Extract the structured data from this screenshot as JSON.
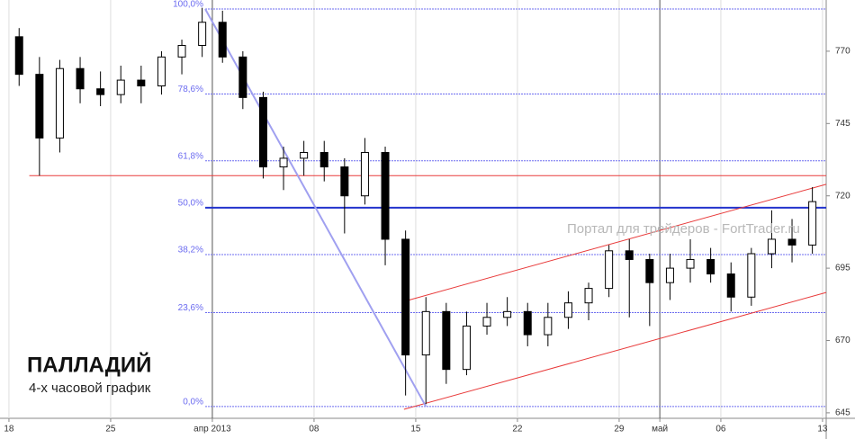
{
  "chart_data": {
    "type": "candlestick",
    "title": "ПАЛЛАДИЙ",
    "subtitle": "4-х часовой график",
    "watermark": "Портал для трейдеров - FortTrader.ru",
    "xlim": [
      -0.44,
      40.18
    ],
    "ylim": [
      643.1,
      787.7
    ],
    "xticks": [
      {
        "value": 0,
        "label": "18"
      },
      {
        "value": 5,
        "label": "25"
      },
      {
        "value": 10,
        "label": "апр 2013"
      },
      {
        "value": 15,
        "label": "08"
      },
      {
        "value": 20,
        "label": "15"
      },
      {
        "value": 25,
        "label": "22"
      },
      {
        "value": 30,
        "label": "29"
      },
      {
        "value": 32,
        "label": "май"
      },
      {
        "value": 35,
        "label": "06"
      },
      {
        "value": 40,
        "label": "13"
      }
    ],
    "yticks": [
      645,
      670,
      695,
      720,
      745,
      770
    ],
    "x": [
      0.5,
      1.5,
      2.5,
      3.5,
      4.5,
      5.5,
      6.5,
      7.5,
      8.5,
      9.5,
      10.5,
      11.5,
      12.5,
      13.5,
      14.5,
      15.5,
      16.5,
      17.5,
      18.5,
      19.5,
      20.5,
      21.5,
      22.5,
      23.5,
      24.5,
      25.5,
      26.5,
      27.5,
      28.5,
      29.5,
      30.5,
      31.5,
      32.5,
      33.5,
      34.5,
      35.5,
      36.5,
      37.5,
      38.5,
      39.5
    ],
    "open": [
      775,
      762,
      740,
      764,
      757,
      755,
      760,
      758,
      768,
      772,
      780,
      768,
      754,
      730,
      733,
      735,
      730,
      720,
      735,
      705,
      665,
      680,
      660,
      675,
      678,
      680,
      672,
      678,
      683,
      688,
      701,
      698,
      690,
      695,
      698,
      693,
      685,
      700,
      705,
      703
    ],
    "high": [
      778,
      768,
      767,
      768,
      763,
      765,
      765,
      770,
      774,
      785,
      784,
      770,
      756,
      737,
      739,
      739,
      733,
      740,
      737,
      708,
      685,
      683,
      680,
      683,
      685,
      683,
      683,
      687,
      690,
      703,
      705,
      700,
      700,
      705,
      702,
      697,
      702,
      715,
      712,
      723
    ],
    "low": [
      758,
      727,
      735,
      752,
      751,
      752,
      752,
      755,
      762,
      768,
      766,
      750,
      726,
      722,
      727,
      725,
      707,
      717,
      696,
      651,
      648,
      655,
      658,
      672,
      675,
      668,
      668,
      674,
      677,
      685,
      678,
      675,
      684,
      690,
      690,
      680,
      682,
      695,
      697,
      700
    ],
    "close": [
      762,
      740,
      764,
      757,
      755,
      760,
      758,
      768,
      772,
      780,
      768,
      754,
      730,
      733,
      735,
      730,
      720,
      735,
      705,
      665,
      680,
      660,
      675,
      678,
      680,
      672,
      678,
      683,
      688,
      701,
      698,
      690,
      695,
      698,
      693,
      685,
      700,
      705,
      703,
      718
    ],
    "fibonacci": {
      "high": 784.6,
      "low": 647.2,
      "x_start": 9.65,
      "color": "#6b6bf0",
      "levels": [
        {
          "ratio": 100,
          "label": "100,0%"
        },
        {
          "ratio": 78.6,
          "label": "78,6%"
        },
        {
          "ratio": 61.8,
          "label": "61,8%"
        },
        {
          "ratio": 50,
          "label": "50,0%"
        },
        {
          "ratio": 38.2,
          "label": "38,2%"
        },
        {
          "ratio": 23.6,
          "label": "23,6%"
        },
        {
          "ratio": 0,
          "label": "0,0%"
        }
      ]
    },
    "trend_lines": [
      {
        "color": "#e83a3a",
        "x": [
          1,
          40.18
        ],
        "y": [
          727,
          727
        ]
      },
      {
        "color": "#e83a3a",
        "x": [
          19.42,
          40.18
        ],
        "y": [
          683.5,
          724
        ]
      },
      {
        "color": "#e83a3a",
        "x": [
          19.42,
          40.18
        ],
        "y": [
          646.2,
          686.6
        ]
      },
      {
        "color": "#a0a0f0",
        "x": [
          9.65,
          20.5
        ],
        "y": [
          784.6,
          647.2
        ]
      }
    ]
  }
}
